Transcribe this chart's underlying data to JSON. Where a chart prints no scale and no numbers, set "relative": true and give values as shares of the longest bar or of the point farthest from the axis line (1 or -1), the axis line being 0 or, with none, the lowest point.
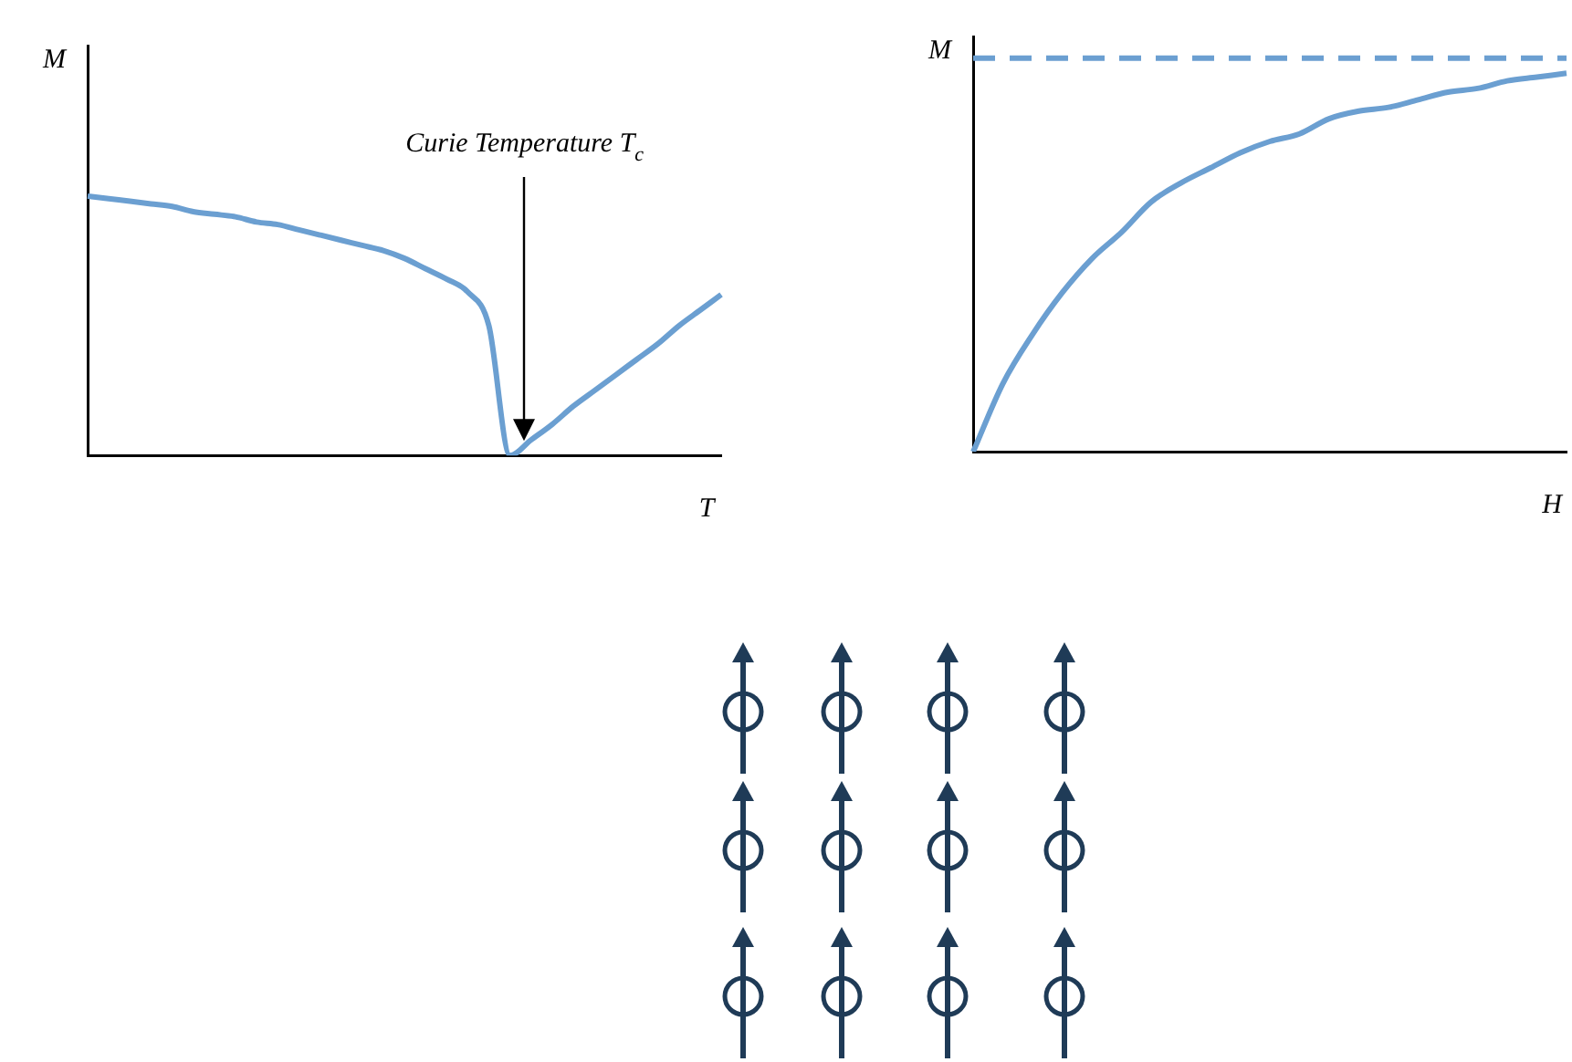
{
  "chart_data": [
    {
      "type": "line",
      "relative": true,
      "xlabel": "T",
      "ylabel": "M",
      "grid": false,
      "legend": false,
      "marker": "none",
      "line_style": "solid",
      "color": "#6b9fd1",
      "categories": [
        null,
        null,
        null,
        null,
        null,
        null,
        null,
        null,
        null,
        null,
        null,
        null,
        null,
        null,
        null,
        null,
        null,
        null,
        null,
        null,
        null,
        null,
        null,
        null,
        null,
        null,
        null,
        null,
        null,
        null,
        null
      ],
      "values": [
        1,
        0.99,
        0.98,
        0.97,
        0.96,
        0.94,
        0.93,
        0.92,
        0.9,
        0.89,
        0.87,
        0.85,
        0.83,
        0.81,
        0.79,
        0.76,
        0.72,
        0.68,
        0.63,
        0.5,
        0,
        0.06,
        0.12,
        0.19,
        0.25,
        0.31,
        0.37,
        0.43,
        0.5,
        0.56,
        0.62
      ],
      "annotations": [
        "Curie Temperature T$_{c}$"
      ]
    },
    {
      "type": "line",
      "relative": true,
      "xlabel": "H",
      "ylabel": "M",
      "grid": false,
      "legend": false,
      "marker": "none",
      "line_style": "solid",
      "color": "#6b9fd1",
      "categories": [
        null,
        null,
        null,
        null,
        null,
        null,
        null,
        null,
        null,
        null,
        null,
        null,
        null,
        null,
        null,
        null,
        null,
        null,
        null,
        null,
        null
      ],
      "values": [
        0,
        0.18,
        0.31,
        0.42,
        0.51,
        0.58,
        0.66,
        0.71,
        0.75,
        0.79,
        0.82,
        0.84,
        0.88,
        0.9,
        0.91,
        0.93,
        0.95,
        0.96,
        0.98,
        0.99,
        1
      ],
      "ref_lines": [
        {
          "axis": "y",
          "value": 1.04,
          "color": "#6b9fd1",
          "line_style": "dashed"
        }
      ]
    }
  ]
}
